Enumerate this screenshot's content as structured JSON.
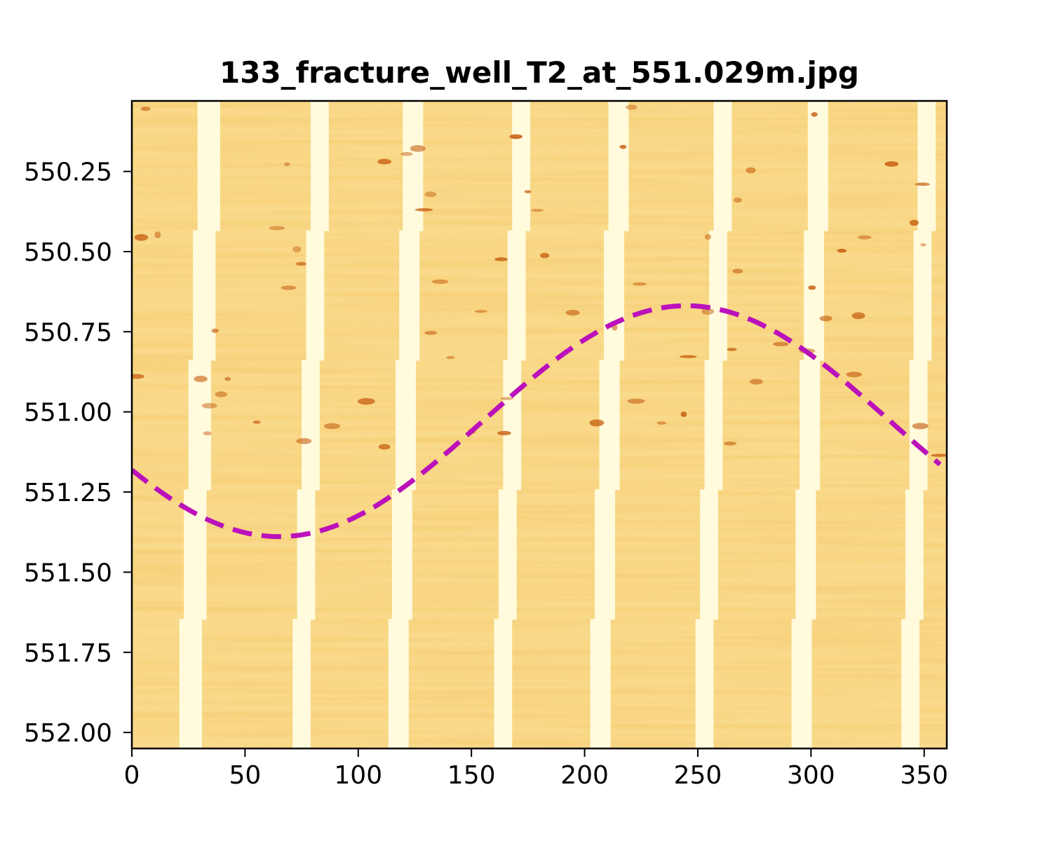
{
  "chart_data": {
    "type": "image",
    "title": "133_fracture_well_T2_at_551.029m.jpg",
    "xlabel": "",
    "ylabel": "",
    "xlim": [
      0,
      360
    ],
    "ylim": [
      552.05,
      550.03
    ],
    "y_inverted": true,
    "xticks": [
      0,
      50,
      100,
      150,
      200,
      250,
      300,
      350
    ],
    "xtick_labels": [
      "0",
      "50",
      "100",
      "150",
      "200",
      "250",
      "300",
      "350"
    ],
    "yticks": [
      550.25,
      550.5,
      550.75,
      551.0,
      551.25,
      551.5,
      551.75,
      552.0
    ],
    "ytick_labels": [
      "550.25",
      "550.50",
      "550.75",
      "551.00",
      "551.25",
      "551.50",
      "551.75",
      "552.00"
    ],
    "grid": false,
    "background_image": {
      "description_colormap": "YlOrBr-like",
      "base_color": "#f9d98a",
      "band_color": "#fffbdc",
      "pad_strips": [
        {
          "top_x": 35,
          "bottom_x": 25,
          "width": 10
        },
        {
          "top_x": 84,
          "bottom_x": 74,
          "width": 8
        },
        {
          "top_x": 125,
          "bottom_x": 117,
          "width": 9
        },
        {
          "top_x": 173,
          "bottom_x": 163,
          "width": 8
        },
        {
          "top_x": 216,
          "bottom_x": 206,
          "width": 9
        },
        {
          "top_x": 262,
          "bottom_x": 252,
          "width": 8
        },
        {
          "top_x": 304,
          "bottom_x": 295,
          "width": 9
        },
        {
          "top_x": 352,
          "bottom_x": 343,
          "width": 8
        }
      ]
    },
    "series": [
      {
        "type": "sinusoid",
        "style": "dashed",
        "color": "#bb11bb",
        "center_depth": 551.029,
        "amplitude": 0.36,
        "trough_azimuth": 65,
        "x_range": [
          0,
          357
        ]
      }
    ]
  }
}
